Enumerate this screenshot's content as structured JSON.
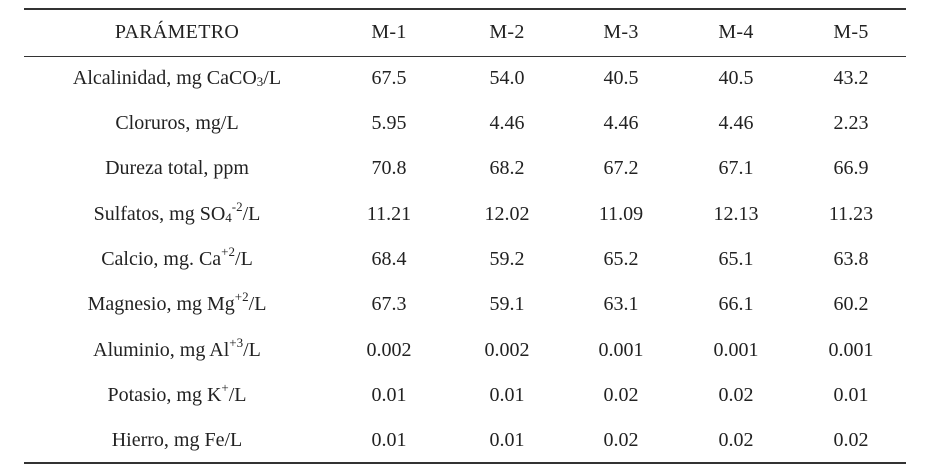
{
  "table": {
    "headers": [
      "PARÁMETRO",
      "M-1",
      "M-2",
      "M-3",
      "M-4",
      "M-5"
    ],
    "rows": [
      {
        "param": {
          "pre": "Alcalinidad, mg CaCO",
          "sub": "3",
          "sup": "",
          "post": "/L"
        },
        "values": [
          "67.5",
          "54.0",
          "40.5",
          "40.5",
          "43.2"
        ]
      },
      {
        "param": {
          "pre": "Cloruros, mg/L",
          "sub": "",
          "sup": "",
          "post": ""
        },
        "values": [
          "5.95",
          "4.46",
          "4.46",
          "4.46",
          "2.23"
        ]
      },
      {
        "param": {
          "pre": "Dureza total, ppm",
          "sub": "",
          "sup": "",
          "post": ""
        },
        "values": [
          "70.8",
          "68.2",
          "67.2",
          "67.1",
          "66.9"
        ]
      },
      {
        "param": {
          "pre": "Sulfatos, mg SO",
          "sub": "4",
          "sup": "-2",
          "post": "/L"
        },
        "values": [
          "11.21",
          "12.02",
          "11.09",
          "12.13",
          "11.23"
        ]
      },
      {
        "param": {
          "pre": "Calcio, mg. Ca",
          "sub": "",
          "sup": "+2",
          "post": "/L"
        },
        "values": [
          "68.4",
          "59.2",
          "65.2",
          "65.1",
          "63.8"
        ]
      },
      {
        "param": {
          "pre": "Magnesio, mg Mg",
          "sub": "",
          "sup": "+2",
          "post": "/L"
        },
        "values": [
          "67.3",
          "59.1",
          "63.1",
          "66.1",
          "60.2"
        ]
      },
      {
        "param": {
          "pre": "Aluminio, mg Al",
          "sub": "",
          "sup": "+3",
          "post": "/L"
        },
        "values": [
          "0.002",
          "0.002",
          "0.001",
          "0.001",
          "0.001"
        ]
      },
      {
        "param": {
          "pre": "Potasio, mg K",
          "sub": "",
          "sup": "+",
          "post": "/L"
        },
        "values": [
          "0.01",
          "0.01",
          "0.02",
          "0.02",
          "0.01"
        ]
      },
      {
        "param": {
          "pre": "Hierro, mg Fe/L",
          "sub": "",
          "sup": "",
          "post": ""
        },
        "values": [
          "0.01",
          "0.01",
          "0.02",
          "0.02",
          "0.02"
        ]
      }
    ]
  }
}
